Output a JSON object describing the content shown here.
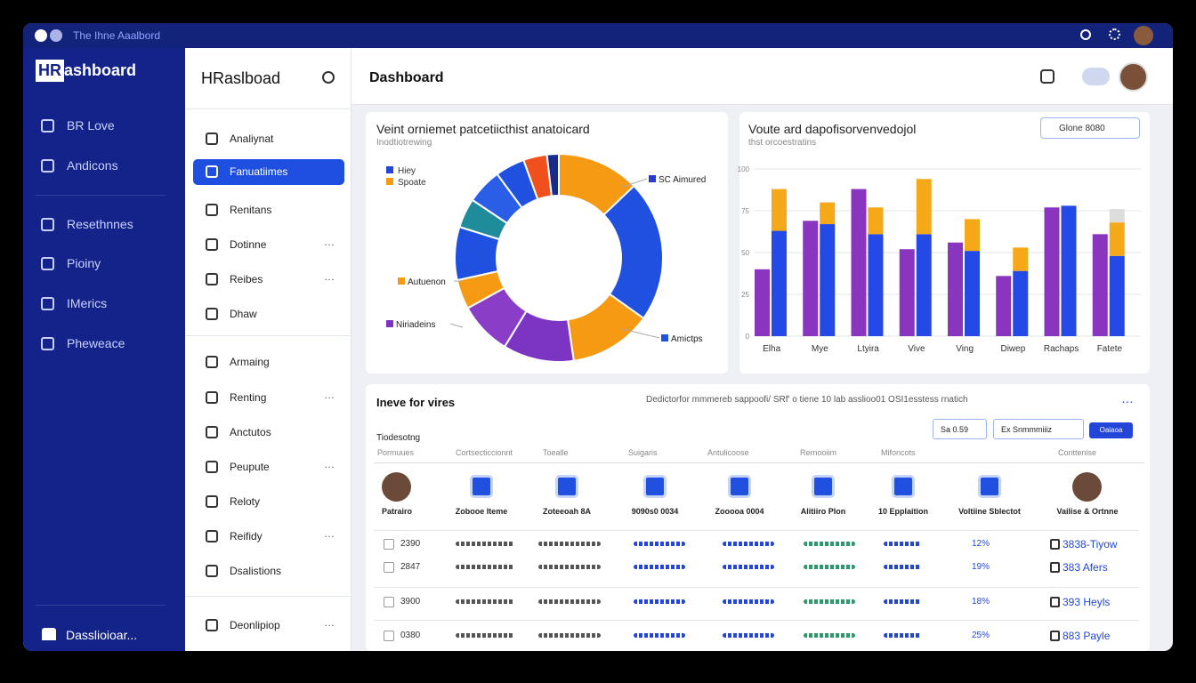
{
  "topbar": {
    "title": "The Ihne Aaalbord"
  },
  "brand": {
    "prefix": "HR",
    "name": "ashboard"
  },
  "nav": {
    "items": [
      "BR Love",
      "Andicons",
      "Resethnnes",
      "Pioiny",
      "IMerics",
      "Pheweace"
    ],
    "footer": "Dasslioioar..."
  },
  "subnav": {
    "title": "HRaslboad",
    "items": [
      "Analiynat",
      "Fanuatiimes",
      "Renitans",
      "Dotinne",
      "Reibes",
      "Dhaw",
      "Armaing",
      "Renting",
      "Anctutos",
      "Peupute",
      "Reloty",
      "Reifidy",
      "Dsalistions",
      "Deonlipiop"
    ],
    "active": 1
  },
  "page": {
    "title": "Dashboard"
  },
  "donut": {
    "type": "pie",
    "title": "Veint orniemet patcetiicthist anatoicard",
    "subtitle": "Inodtiotrewing",
    "legend": [
      {
        "name": "Hiey",
        "color": "#2346d8"
      },
      {
        "name": "Spoate",
        "color": "#f59a12"
      }
    ],
    "annotations": [
      "SC Aimured",
      "Autuenon",
      "Niriadeins",
      "Amictps"
    ],
    "values": [
      14,
      24,
      14,
      12,
      9,
      5,
      9,
      5,
      6,
      5,
      4,
      2
    ],
    "colors": [
      "#f59a12",
      "#2050e0",
      "#f59a12",
      "#7b35c2",
      "#8a3ec8",
      "#f59a12",
      "#2050e0",
      "#1e8c9a",
      "#2a5ee6",
      "#2050e0",
      "#f0501e",
      "#1a2a8a"
    ]
  },
  "bars": {
    "type": "bar",
    "title": "Voute ard dapofisorvenvedojol",
    "subtitle": "thst orcoestratins",
    "dropdown": "Glone 8080",
    "categories": [
      "Elha",
      "Mye",
      "Ltyira",
      "Vive",
      "Ving",
      "Diwep",
      "Rachaps",
      "Fatete"
    ],
    "ylim": [
      0,
      100
    ],
    "yticks": [
      0,
      25,
      50,
      75,
      100
    ],
    "grid": true,
    "series": [
      {
        "color": "#8a35c0",
        "values": [
          40,
          69,
          88,
          52,
          56,
          36,
          77,
          61
        ]
      },
      {
        "color": "#2349e6",
        "values": [
          63,
          67,
          61,
          61,
          51,
          39,
          78,
          48
        ]
      },
      {
        "color": "#f5a818",
        "values": [
          25,
          13,
          16,
          33,
          19,
          14,
          0,
          20
        ]
      },
      {
        "color": "#dddddd",
        "values": [
          0,
          0,
          0,
          0,
          0,
          0,
          0,
          8
        ]
      }
    ]
  },
  "table": {
    "title": "Ineve for vires",
    "note": "Dedictorfor mmmereb sappoofi/ SRf' o tiene 10 lab asslioo01 OSI1esstess rnatich",
    "caption": "Tiodesotng",
    "filters": [
      "Sa 0.59",
      "Ex Snmmmiiiz"
    ],
    "button": "Oaiaoa",
    "columns": [
      "Pormuues",
      "Cortsecticcionnt",
      "Toealle",
      "Suigaris",
      "Antulicoose",
      "Rernooiim",
      "Mifoncots",
      "Conttenise"
    ],
    "cards": [
      "Patrairo",
      "Zobooe Iteme",
      "Zoteeoah 8A",
      "9090s0 0034",
      "Zooooa 0004",
      "Alitiiro Plon",
      "10 Epplaition",
      "Voltiine Sblectot",
      "Vailise & Ortnne"
    ],
    "rows": [
      {
        "id": "2390",
        "pct": "12%",
        "name": "3838-Tiyow"
      },
      {
        "id": "2847",
        "pct": "19%",
        "name": "383 Afers"
      },
      {
        "id": "3900",
        "pct": "18%",
        "name": "393 Heyls"
      },
      {
        "id": "0380",
        "pct": "25%",
        "name": "883 Payle"
      }
    ]
  }
}
